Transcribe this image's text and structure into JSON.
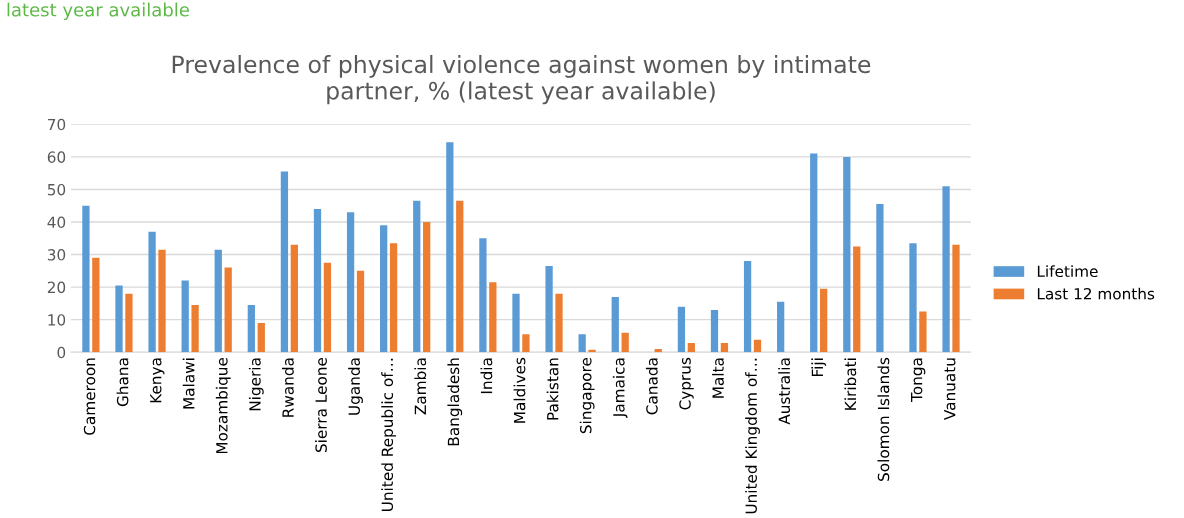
{
  "chart_data": {
    "type": "bar",
    "title": "Prevalence of physical violence against women by intimate\npartner, % (latest year available)",
    "annotations": [
      "latest year available"
    ],
    "categories": [
      "Cameroon",
      "Ghana",
      "Kenya",
      "Malawi",
      "Mozambique",
      "Nigeria",
      "Rwanda",
      "Sierra Leone",
      "Uganda",
      "United Republic of…",
      "Zambia",
      "Bangladesh",
      "India",
      "Maldives",
      "Pakistan",
      "Singapore",
      "Jamaica",
      "Canada",
      "Cyprus",
      "Malta",
      "United Kingdom of…",
      "Australia",
      "Fiji",
      "Kiribati",
      "Solomon Islands",
      "Tonga",
      "Vanuatu"
    ],
    "series": [
      {
        "name": "Lifetime",
        "color": "#5b9bd5",
        "values": [
          45,
          20.5,
          37,
          22,
          31.5,
          14.5,
          55.5,
          44,
          43,
          39,
          46.5,
          64.5,
          35,
          18,
          26.5,
          5.5,
          17,
          null,
          14,
          13,
          28,
          15.5,
          61,
          60,
          45.5,
          33.5,
          51
        ]
      },
      {
        "name": "Last 12 months",
        "color": "#ed7d31",
        "values": [
          29,
          18,
          31.5,
          14.5,
          26,
          9,
          33,
          27.5,
          25,
          33.5,
          40,
          46.5,
          21.5,
          5.5,
          18,
          0.8,
          6,
          1,
          2.8,
          2.8,
          3.8,
          null,
          19.5,
          32.5,
          null,
          12.5,
          33
        ]
      }
    ],
    "ylim": [
      0,
      70
    ],
    "yticks": [
      0,
      10,
      20,
      30,
      40,
      50,
      60,
      70
    ],
    "grid": "y",
    "legend": "right"
  }
}
